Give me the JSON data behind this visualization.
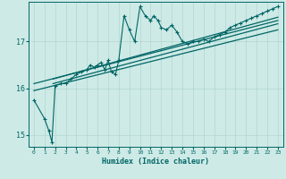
{
  "xlabel": "Humidex (Indice chaleur)",
  "xlim": [
    -0.5,
    23.5
  ],
  "ylim": [
    14.75,
    17.85
  ],
  "yticks": [
    15,
    16,
    17
  ],
  "xtick_labels": [
    "0",
    "1",
    "2",
    "3",
    "4",
    "5",
    "6",
    "7",
    "8",
    "9",
    "10",
    "11",
    "12",
    "13",
    "14",
    "15",
    "16",
    "17",
    "18",
    "19",
    "20",
    "21",
    "22",
    "23"
  ],
  "bg_color": "#ceeae6",
  "grid_color": "#b0d5d0",
  "line_color": "#006666",
  "main_data_x": [
    0,
    1,
    1.4,
    1.7,
    2,
    2.5,
    3,
    3.5,
    4,
    4.5,
    5,
    5.3,
    5.7,
    6,
    6.3,
    6.7,
    7,
    7.3,
    7.7,
    8,
    8.5,
    9,
    9.5,
    10,
    10.5,
    11,
    11.3,
    11.7,
    12,
    12.5,
    13,
    13.5,
    14,
    14.5,
    15,
    15.5,
    16,
    16.5,
    17,
    17.5,
    18,
    18.5,
    19,
    19.5,
    20,
    20.5,
    21,
    21.5,
    22,
    22.5,
    23
  ],
  "main_data_y": [
    15.75,
    15.35,
    15.1,
    14.85,
    16.05,
    16.1,
    16.1,
    16.2,
    16.3,
    16.35,
    16.4,
    16.5,
    16.45,
    16.5,
    16.55,
    16.4,
    16.6,
    16.35,
    16.3,
    16.6,
    17.55,
    17.25,
    17.0,
    17.75,
    17.55,
    17.45,
    17.55,
    17.45,
    17.3,
    17.25,
    17.35,
    17.2,
    17.0,
    16.95,
    17.0,
    17.0,
    17.05,
    17.0,
    17.1,
    17.15,
    17.2,
    17.3,
    17.35,
    17.4,
    17.45,
    17.5,
    17.55,
    17.6,
    17.65,
    17.7,
    17.75
  ],
  "trend_lines": [
    {
      "x": [
        0,
        23
      ],
      "y": [
        15.95,
        17.25
      ]
    },
    {
      "x": [
        0,
        23
      ],
      "y": [
        16.1,
        17.45
      ]
    },
    {
      "x": [
        1.8,
        23
      ],
      "y": [
        16.1,
        17.38
      ]
    },
    {
      "x": [
        1.8,
        23
      ],
      "y": [
        16.2,
        17.52
      ]
    }
  ]
}
